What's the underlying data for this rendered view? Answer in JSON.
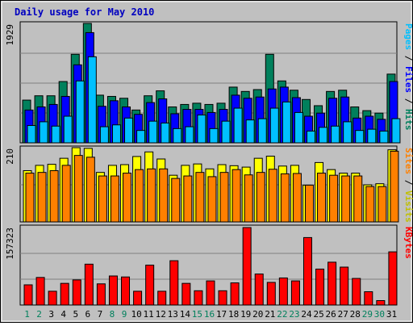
{
  "chart_data": {
    "type": "bar",
    "title": "Daily usage for May 2010",
    "categories": [
      "1",
      "2",
      "3",
      "4",
      "5",
      "6",
      "7",
      "8",
      "9",
      "10",
      "11",
      "12",
      "13",
      "14",
      "15",
      "16",
      "17",
      "18",
      "19",
      "20",
      "21",
      "22",
      "23",
      "24",
      "25",
      "26",
      "27",
      "28",
      "29",
      "30",
      "31"
    ],
    "weekend_days": [
      "1",
      "2",
      "8",
      "9",
      "15",
      "16",
      "22",
      "23",
      "29",
      "30"
    ],
    "panels": [
      {
        "name": "hits-files-pages",
        "ymax_label": "1929",
        "ylim": [
          0,
          1929
        ],
        "right_label": [
          "Pages",
          " / ",
          "Files",
          " / ",
          "Hits"
        ],
        "series": [
          {
            "name": "Hits",
            "color": "#00805c",
            "values": [
              690,
              760,
              760,
              990,
              1430,
              1929,
              770,
              750,
              720,
              530,
              760,
              840,
              580,
              620,
              640,
              620,
              640,
              900,
              830,
              860,
              1430,
              1000,
              850,
              700,
              600,
              830,
              850,
              580,
              520,
              480,
              1110
            ]
          },
          {
            "name": "Files",
            "color": "#0000ff",
            "values": [
              530,
              580,
              620,
              750,
              1260,
              1780,
              590,
              680,
              580,
              460,
              650,
              710,
              470,
              540,
              540,
              490,
              540,
              770,
              720,
              740,
              870,
              900,
              730,
              430,
              480,
              720,
              740,
              400,
              430,
              380,
              990
            ]
          },
          {
            "name": "Pages",
            "color": "#00c0ff",
            "values": [
              280,
              340,
              270,
              430,
              1000,
              1390,
              260,
              290,
              400,
              200,
              350,
              320,
              230,
              260,
              450,
              230,
              350,
              560,
              370,
              390,
              560,
              660,
              490,
              190,
              250,
              270,
              340,
              200,
              220,
              190,
              390
            ]
          }
        ]
      },
      {
        "name": "visits-sites",
        "ymax_label": "210",
        "ylim": [
          0,
          210
        ],
        "right_label": [
          "Sites",
          " / ",
          "Visits"
        ],
        "series": [
          {
            "name": "Visits",
            "color": "#ffff00",
            "values": [
              145,
              160,
              163,
              180,
              210,
              208,
              140,
              160,
              162,
              185,
              198,
              178,
              132,
              160,
              164,
              150,
              162,
              159,
              155,
              180,
              186,
              158,
              160,
              104,
              168,
              148,
              138,
              138,
              105,
              108,
              204
            ]
          },
          {
            "name": "Sites",
            "color": "#ff8000",
            "values": [
              138,
              140,
              145,
              160,
              188,
              183,
              130,
              130,
              138,
              148,
              150,
              150,
              123,
              130,
              140,
              128,
              140,
              148,
              133,
              140,
              149,
              136,
              137,
              104,
              138,
              132,
              130,
              130,
              100,
              100,
              200
            ]
          }
        ]
      },
      {
        "name": "kbytes",
        "ymax_label": "157323",
        "ylim": [
          0,
          157323
        ],
        "right_label": [
          "KBytes"
        ],
        "series": [
          {
            "name": "KBytes",
            "color": "#ff0000",
            "values": [
              41000,
              56000,
              28000,
              44000,
              51000,
              83000,
              43000,
              59000,
              57000,
              28000,
              81000,
              28000,
              90000,
              44000,
              29000,
              49000,
              29000,
              45000,
              157323,
              63000,
              46000,
              55000,
              49000,
              137000,
              73000,
              87000,
              77000,
              54000,
              27000,
              9000,
              108000
            ]
          }
        ]
      }
    ]
  }
}
